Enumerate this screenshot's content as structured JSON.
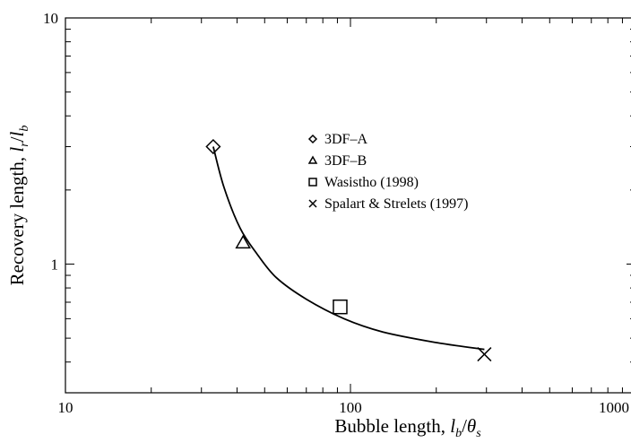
{
  "chart_data": {
    "type": "scatter",
    "xscale": "log",
    "yscale": "log",
    "xlim": [
      10,
      1000
    ],
    "ylim": [
      0.3,
      10
    ],
    "x_tick_labels": [
      "10",
      "100",
      "1000"
    ],
    "y_tick_labels": [
      "1",
      "10"
    ],
    "xlabel": {
      "main": "Bubble length, ",
      "var1": "l",
      "sub1": "b",
      "slash": "/",
      "var2": "θ",
      "sub2": "s"
    },
    "ylabel": {
      "main": "Recovery length, ",
      "var1": "l",
      "sub1": "r",
      "slash": "/",
      "var2": "l",
      "sub2": "b"
    },
    "grid": false,
    "legend_position": "top-right",
    "series": [
      {
        "name": "3DF–A",
        "marker": "diamond",
        "x": [
          33
        ],
        "y": [
          3.0
        ]
      },
      {
        "name": "3DF–B",
        "marker": "triangle",
        "x": [
          42
        ],
        "y": [
          1.22
        ]
      },
      {
        "name": "Wasistho (1998)",
        "marker": "square",
        "x": [
          92
        ],
        "y": [
          0.67
        ]
      },
      {
        "name": "Spalart & Strelets (1997)",
        "marker": "cross",
        "x": [
          295
        ],
        "y": [
          0.43
        ]
      }
    ],
    "fit_curve": {
      "x": [
        33,
        36,
        41,
        47,
        55,
        70,
        95,
        130,
        200,
        295
      ],
      "y": [
        3.0,
        2.05,
        1.4,
        1.1,
        0.88,
        0.72,
        0.6,
        0.53,
        0.48,
        0.45
      ]
    }
  }
}
